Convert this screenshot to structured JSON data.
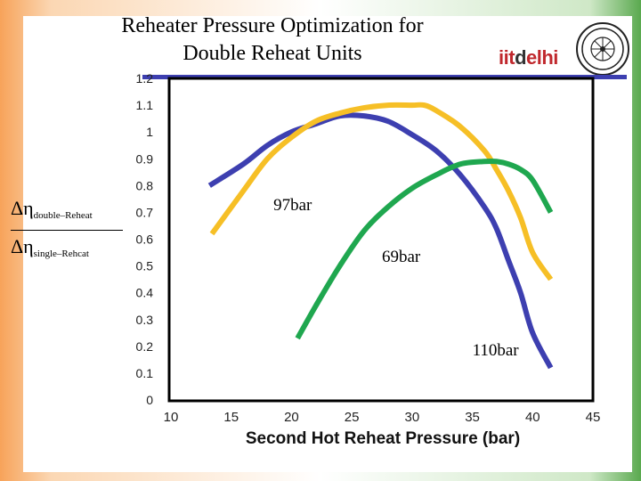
{
  "title_line1": "Reheater Pressure Optimization for",
  "title_line2": "Double Reheat Units",
  "logo": {
    "part1": "iit",
    "part2": "d",
    "part3": "elhi"
  },
  "ylabel": {
    "top_symbol": "Δη",
    "top_sub": "double–Reheat",
    "bottom_symbol": "Δη",
    "bottom_sub": "single–Rehcat"
  },
  "chart_data": {
    "type": "line",
    "title": "Reheater Pressure Optimization for Double Reheat Units",
    "xlabel": "Second Hot Reheat Pressure (bar)",
    "ylabel": "Δη double–Reheat / Δη single–Rehcat",
    "xlim": [
      10,
      45
    ],
    "ylim": [
      0,
      1.2
    ],
    "xticks": [
      10,
      15,
      20,
      25,
      30,
      35,
      40,
      45
    ],
    "yticks": [
      0,
      0.1,
      0.2,
      0.3,
      0.4,
      0.5,
      0.6,
      0.7,
      0.8,
      0.9,
      1,
      1.1,
      1.2
    ],
    "yticklabels": [
      "0",
      "0.1",
      "0.2",
      "0.3",
      "0.4",
      "0.5",
      "0.6",
      "0.7",
      "0.8",
      "0.9",
      "1",
      "1.1",
      "1.2"
    ],
    "series": [
      {
        "name": "97bar",
        "color": "#3d3fb0",
        "x": [
          13.2,
          16,
          18,
          20,
          22,
          24,
          26,
          28,
          30,
          32,
          34,
          36,
          37,
          38,
          39,
          40,
          41.5
        ],
        "y": [
          0.8,
          0.88,
          0.95,
          1.0,
          1.03,
          1.06,
          1.06,
          1.04,
          0.99,
          0.93,
          0.84,
          0.72,
          0.64,
          0.52,
          0.4,
          0.25,
          0.12
        ]
      },
      {
        "name": "110bar",
        "color": "#f6bf26",
        "x": [
          13.4,
          16,
          18,
          20,
          22,
          24,
          26,
          28,
          30,
          31,
          32,
          34,
          36,
          37,
          38,
          39,
          40,
          41.5
        ],
        "y": [
          0.62,
          0.78,
          0.9,
          0.98,
          1.04,
          1.07,
          1.09,
          1.1,
          1.1,
          1.1,
          1.08,
          1.02,
          0.93,
          0.86,
          0.78,
          0.68,
          0.55,
          0.45
        ]
      },
      {
        "name": "69bar",
        "color": "#1fa74f",
        "x": [
          20.5,
          22,
          24,
          26,
          28,
          30,
          32,
          34,
          36,
          37,
          38,
          39,
          40,
          41.5
        ],
        "y": [
          0.23,
          0.35,
          0.5,
          0.63,
          0.72,
          0.79,
          0.84,
          0.88,
          0.89,
          0.89,
          0.88,
          0.86,
          0.82,
          0.7
        ]
      }
    ],
    "annotations": [
      {
        "text": "97bar",
        "x": 18.5,
        "y": 0.76
      },
      {
        "text": "69bar",
        "x": 27.5,
        "y": 0.57
      },
      {
        "text": "110bar",
        "x": 35,
        "y": 0.22
      }
    ]
  }
}
